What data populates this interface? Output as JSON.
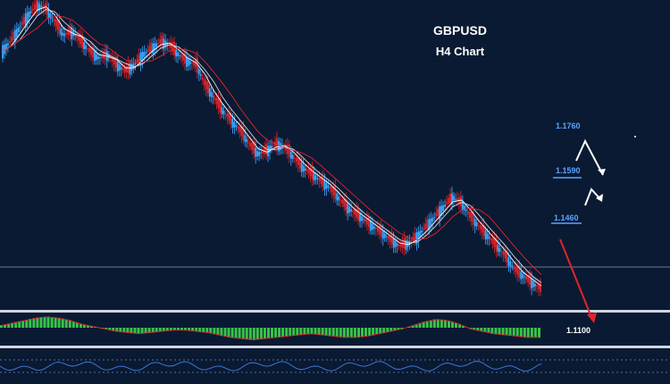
{
  "chart_data": {
    "type": "candlestick",
    "title": "GBPUSD",
    "subtitle": "H4 Chart",
    "level_labels": [
      "1.1760",
      "1.1590",
      "1.1460",
      "1.1100"
    ],
    "series": [
      {
        "name": "",
        "values": [
          1.2,
          1.203,
          1.207,
          1.211,
          1.214,
          1.213,
          1.209,
          1.205,
          1.206,
          1.203,
          1.2,
          1.198,
          1.199,
          1.196,
          1.194,
          1.196,
          1.199,
          1.201,
          1.203,
          1.202,
          1.199,
          1.197,
          1.196,
          1.19,
          1.186,
          1.182,
          1.179,
          1.176,
          1.172,
          1.169,
          1.17,
          1.172,
          1.171,
          1.168,
          1.165,
          1.163,
          1.161,
          1.159,
          1.156,
          1.153,
          1.151,
          1.149,
          1.147,
          1.145,
          1.143,
          1.141,
          1.142,
          1.144,
          1.147,
          1.15,
          1.153,
          1.156,
          1.154,
          1.15,
          1.147,
          1.144,
          1.141,
          1.138,
          1.134,
          1.132,
          1.13,
          1.128
        ]
      }
    ],
    "osc1": [
      0.2,
      0.4,
      0.6,
      0.8,
      0.9,
      0.8,
      0.6,
      0.3,
      0.1,
      -0.1,
      -0.3,
      -0.4,
      -0.5,
      -0.4,
      -0.3,
      -0.2,
      -0.2,
      -0.3,
      -0.4,
      -0.6,
      -0.8,
      -0.9,
      -1.0,
      -0.9,
      -0.8,
      -0.7,
      -0.6,
      -0.5,
      -0.6,
      -0.7,
      -0.8,
      -0.8,
      -0.7,
      -0.5,
      -0.3,
      -0.1,
      0.2,
      0.5,
      0.7,
      0.6,
      0.3,
      -0.1,
      -0.3,
      -0.5,
      -0.6,
      -0.7,
      -0.8,
      -0.8
    ]
  }
}
